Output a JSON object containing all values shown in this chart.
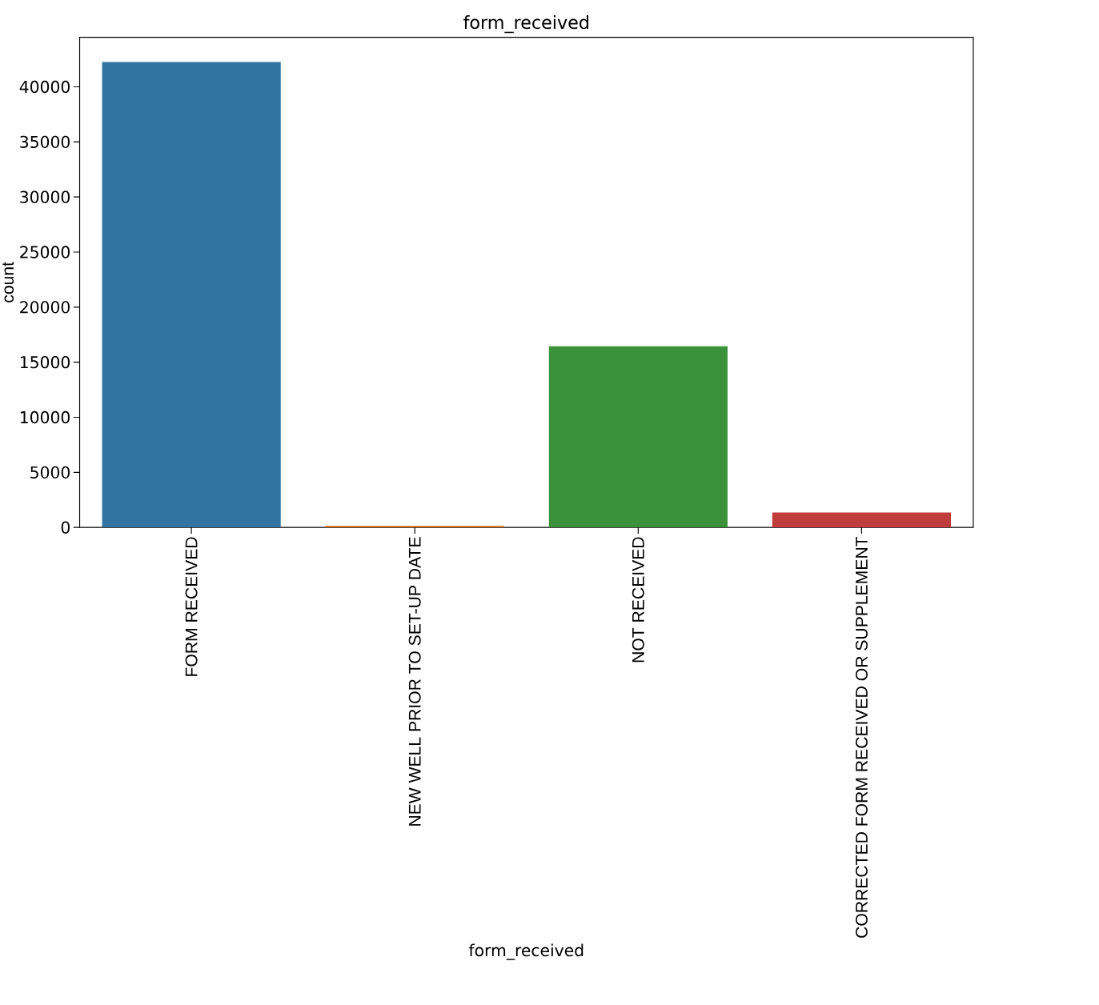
{
  "chart_data": {
    "type": "bar",
    "title": "form_received",
    "xlabel": "form_received",
    "ylabel": "count",
    "categories": [
      "FORM RECEIVED",
      "NEW WELL PRIOR TO SET-UP DATE",
      "NOT RECEIVED",
      "CORRECTED FORM RECEIVED OR SUPPLEMENT"
    ],
    "values": [
      42250,
      150,
      16450,
      1350
    ],
    "colors": [
      "#3274a1",
      "#e1812c",
      "#3a923a",
      "#c03d3e"
    ],
    "ylim": [
      0,
      44500
    ],
    "yticks": [
      0,
      5000,
      10000,
      15000,
      20000,
      25000,
      30000,
      35000,
      40000
    ],
    "grid": false
  }
}
